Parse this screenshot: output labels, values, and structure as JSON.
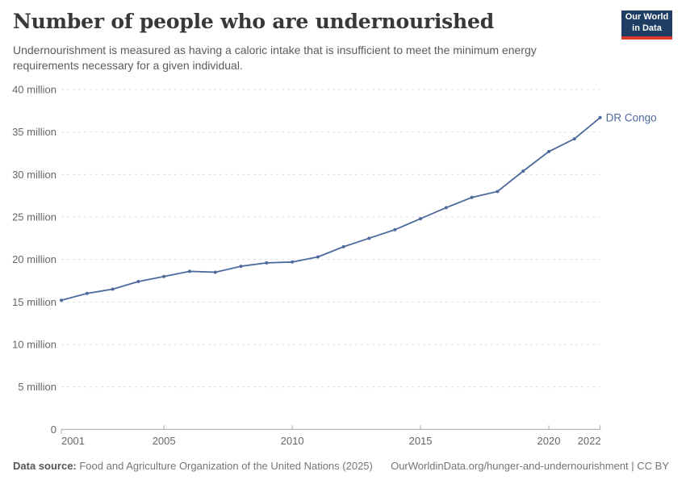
{
  "header": {
    "title": "Number of people who are undernourished",
    "subtitle": "Undernourishment is measured as having a caloric intake that is insufficient to meet the minimum energy requirements necessary for a given individual.",
    "logo": {
      "line1": "Our World",
      "line2": "in Data",
      "bg_color": "#1d3d63",
      "accent_color": "#d93a2b"
    }
  },
  "chart_data": {
    "type": "line",
    "title": "Number of people who are undernourished",
    "x": [
      2001,
      2002,
      2003,
      2004,
      2005,
      2006,
      2007,
      2008,
      2009,
      2010,
      2011,
      2012,
      2013,
      2014,
      2015,
      2016,
      2017,
      2018,
      2019,
      2020,
      2021,
      2022
    ],
    "series": [
      {
        "name": "DR Congo",
        "color": "#4c6a9c",
        "unit": "million people",
        "values": [
          15.2,
          16.0,
          16.5,
          17.4,
          18.0,
          18.6,
          18.5,
          19.2,
          19.6,
          19.7,
          20.3,
          21.5,
          22.5,
          23.5,
          24.8,
          26.1,
          27.3,
          28.0,
          30.4,
          32.7,
          34.2,
          36.7
        ]
      }
    ],
    "xlabel": "",
    "ylabel": "",
    "ylim": [
      0,
      40
    ],
    "yticks": [
      {
        "value": 0,
        "label": "0"
      },
      {
        "value": 5,
        "label": "5 million"
      },
      {
        "value": 10,
        "label": "10 million"
      },
      {
        "value": 15,
        "label": "15 million"
      },
      {
        "value": 20,
        "label": "20 million"
      },
      {
        "value": 25,
        "label": "25 million"
      },
      {
        "value": 30,
        "label": "30 million"
      },
      {
        "value": 35,
        "label": "35 million"
      },
      {
        "value": 40,
        "label": "40 million"
      }
    ],
    "xticks": [
      2001,
      2005,
      2010,
      2015,
      2020,
      2022
    ],
    "grid": "horizontal-dashed",
    "legend_position": "end-of-line",
    "end_label": "DR Congo"
  },
  "footer": {
    "datasource_label": "Data source:",
    "datasource_text": " Food and Agriculture Organization of the United Nations (2025)",
    "link": "OurWorldinData.org/hunger-and-undernourishment | CC BY"
  },
  "colors": {
    "line": "#4c6a9c",
    "grid": "#dddddd",
    "axis": "#a5a5a5",
    "tick_label": "#666666",
    "title": "#383838",
    "subtitle": "#5b5b5b"
  }
}
